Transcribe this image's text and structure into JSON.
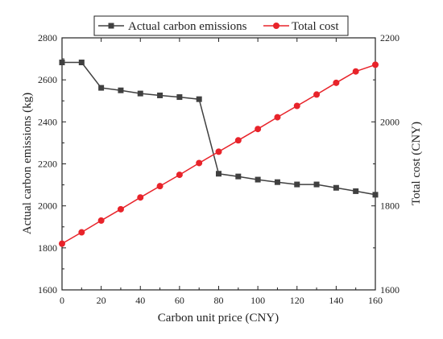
{
  "chart_data": {
    "type": "line",
    "title": "",
    "xlabel": "Carbon unit price (CNY)",
    "ylabel": "Actual carbon emissions (kg)",
    "y2label": "Total cost (CNY)",
    "xlim": [
      0,
      160
    ],
    "ylim": [
      1600,
      2800
    ],
    "y2lim": [
      1600,
      2200
    ],
    "xticks": [
      0,
      20,
      40,
      60,
      80,
      100,
      120,
      140,
      160
    ],
    "yticks": [
      1600,
      1800,
      2000,
      2200,
      2400,
      2600,
      2800
    ],
    "y2ticks": [
      1600,
      1800,
      2000,
      2200
    ],
    "grid": false,
    "legend_position": "top-center",
    "x": [
      0,
      10,
      20,
      30,
      40,
      50,
      60,
      70,
      80,
      90,
      100,
      110,
      120,
      130,
      140,
      150,
      160
    ],
    "series": [
      {
        "name": "Actual carbon emissions",
        "axis": "left",
        "marker": "square",
        "color": "#404040",
        "values": [
          2683,
          2683,
          2562,
          2550,
          2535,
          2526,
          2518,
          2508,
          2153,
          2140,
          2125,
          2113,
          2102,
          2102,
          2086,
          2070,
          2053
        ]
      },
      {
        "name": "Total cost",
        "axis": "right",
        "marker": "circle",
        "color": "#e8232a",
        "values": [
          1710,
          1737,
          1765,
          1792,
          1820,
          1847,
          1874,
          1902,
          1929,
          1956,
          1983,
          2011,
          2038,
          2065,
          2093,
          2120,
          2136
        ]
      }
    ]
  }
}
